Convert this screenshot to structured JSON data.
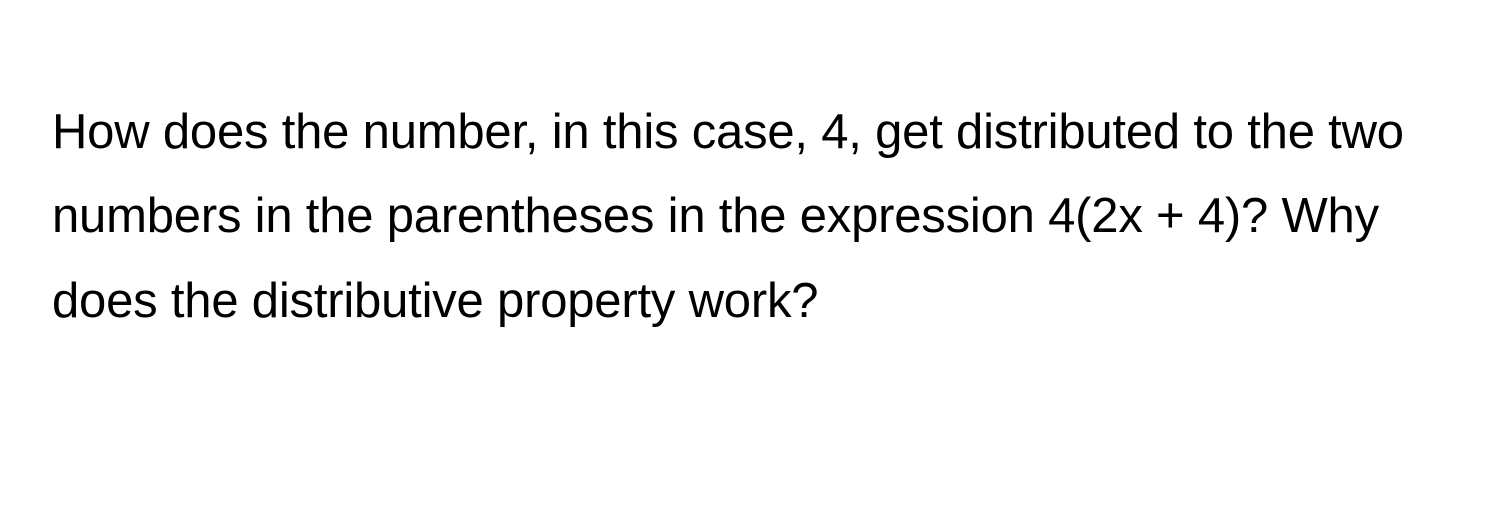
{
  "question": {
    "text": "How does the number, in this case, 4, get distributed to the two numbers in the parentheses in the expression 4(2x + 4)? Why does the distributive property work?",
    "font_size": 49,
    "line_height": 1.72,
    "color": "#000000",
    "font_weight": 400,
    "background_color": "#ffffff"
  }
}
